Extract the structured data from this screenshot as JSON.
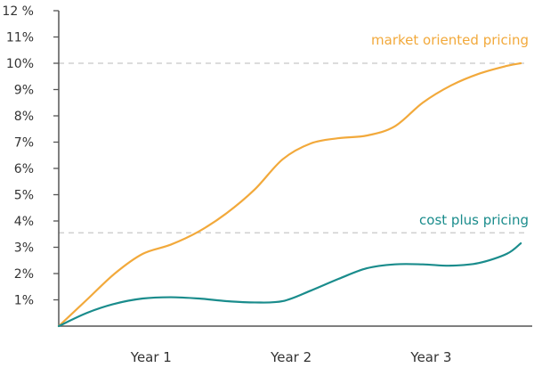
{
  "chart_data": {
    "type": "line",
    "title": "",
    "xlabel": "",
    "ylabel": "",
    "categories": [
      "Year 1",
      "Year 2",
      "Year 3"
    ],
    "x_range": [
      0,
      3.35
    ],
    "ylim": [
      0,
      12
    ],
    "y_ticks": [
      {
        "value": 1,
        "label": "1%"
      },
      {
        "value": 2,
        "label": "2%"
      },
      {
        "value": 3,
        "label": "3%"
      },
      {
        "value": 4,
        "label": "4%"
      },
      {
        "value": 5,
        "label": "5%"
      },
      {
        "value": 6,
        "label": "6%"
      },
      {
        "value": 7,
        "label": "7%"
      },
      {
        "value": 8,
        "label": "8%"
      },
      {
        "value": 9,
        "label": "9%"
      },
      {
        "value": 10,
        "label": "10%"
      },
      {
        "value": 11,
        "label": "11%"
      },
      {
        "value": 12,
        "label": "12 %"
      }
    ],
    "x_ticks": [
      {
        "value": 0.66,
        "label": "Year 1"
      },
      {
        "value": 1.66,
        "label": "Year 2"
      },
      {
        "value": 2.66,
        "label": "Year 3"
      }
    ],
    "grid": false,
    "reference_lines": [
      10.0,
      3.55
    ],
    "series": [
      {
        "name": "market oriented pricing",
        "color": "#F2A93B",
        "x": [
          0,
          0.2,
          0.4,
          0.6,
          0.8,
          1.0,
          1.2,
          1.4,
          1.6,
          1.8,
          2.0,
          2.2,
          2.4,
          2.6,
          2.8,
          3.0,
          3.2,
          3.3
        ],
        "y": [
          0,
          1.0,
          2.0,
          2.75,
          3.1,
          3.6,
          4.3,
          5.2,
          6.35,
          6.95,
          7.15,
          7.25,
          7.6,
          8.5,
          9.15,
          9.6,
          9.9,
          10.0
        ]
      },
      {
        "name": "cost plus pricing",
        "color": "#1A8C8C",
        "x": [
          0,
          0.2,
          0.4,
          0.6,
          0.8,
          1.0,
          1.2,
          1.4,
          1.6,
          1.8,
          2.0,
          2.2,
          2.4,
          2.6,
          2.8,
          3.0,
          3.2,
          3.3
        ],
        "y": [
          0,
          0.5,
          0.85,
          1.05,
          1.1,
          1.05,
          0.95,
          0.9,
          0.95,
          1.35,
          1.8,
          2.2,
          2.35,
          2.35,
          2.3,
          2.4,
          2.75,
          3.15
        ]
      }
    ],
    "series_label_positions": [
      "top-right",
      "middle-right"
    ]
  }
}
